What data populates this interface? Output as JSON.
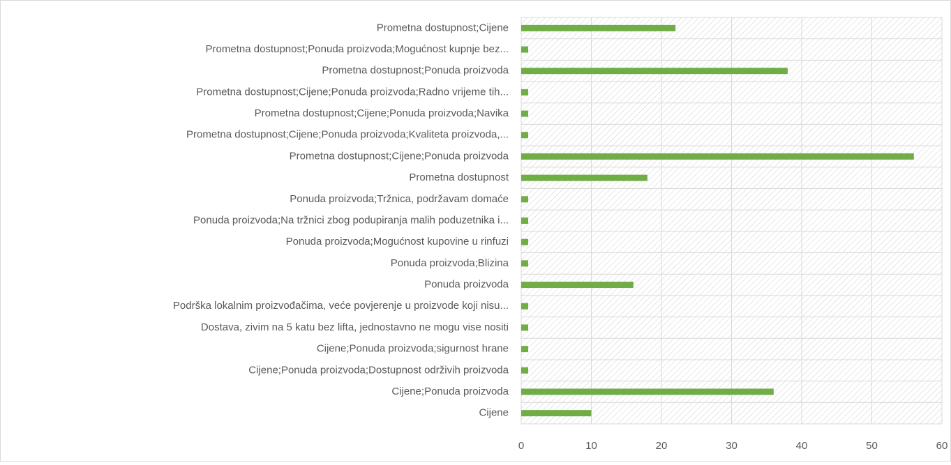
{
  "chart_data": {
    "type": "bar",
    "orientation": "horizontal",
    "categories": [
      "Prometna dostupnost;Cijene",
      "Prometna dostupnost;Ponuda proizvoda;Mogućnost kupnje bez...",
      "Prometna dostupnost;Ponuda proizvoda",
      "Prometna dostupnost;Cijene;Ponuda proizvoda;Radno vrijeme tih...",
      "Prometna dostupnost;Cijene;Ponuda proizvoda;Navika",
      "Prometna dostupnost;Cijene;Ponuda proizvoda;Kvaliteta proizvoda,...",
      "Prometna dostupnost;Cijene;Ponuda proizvoda",
      "Prometna dostupnost",
      "Ponuda proizvoda;Tržnica, podržavam domaće",
      "Ponuda proizvoda;Na tržnici zbog podupiranja malih poduzetnika i...",
      "Ponuda proizvoda;Mogućnost kupovine u rinfuzi",
      "Ponuda proizvoda;Blizina",
      "Ponuda proizvoda",
      "Podrška lokalnim proizvođačima, veće povjerenje u proizvode koji nisu...",
      "Dostava, zivim na 5 katu bez lifta, jednostavno ne mogu vise nositi",
      "Cijene;Ponuda proizvoda;sigurnost hrane",
      "Cijene;Ponuda proizvoda;Dostupnost održivih proizvoda",
      "Cijene;Ponuda proizvoda",
      "Cijene"
    ],
    "values": [
      22,
      1,
      38,
      1,
      1,
      1,
      56,
      18,
      1,
      1,
      1,
      1,
      16,
      1,
      1,
      1,
      1,
      36,
      10
    ],
    "color": "#70ad47",
    "xlim": [
      0,
      60
    ],
    "xticks": [
      0,
      10,
      20,
      30,
      40,
      50,
      60
    ],
    "grid": true
  }
}
